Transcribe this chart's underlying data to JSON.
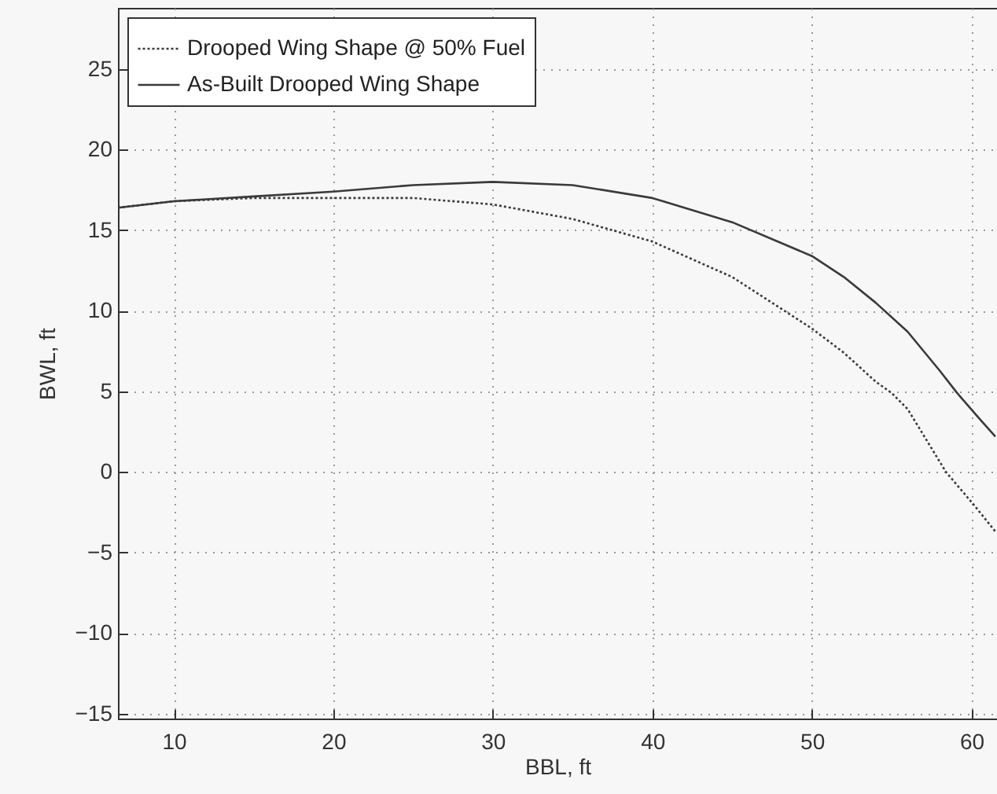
{
  "chart_data": {
    "type": "line",
    "xlabel": "BBL, ft",
    "ylabel": "BWL, ft",
    "xlim": [
      6.5,
      61.6
    ],
    "ylim": [
      -15.3,
      28.8
    ],
    "xticks": [
      10,
      20,
      30,
      40,
      50,
      60
    ],
    "yticks": [
      -15,
      -10,
      -5,
      0,
      5,
      10,
      15,
      20,
      25
    ],
    "grid": true,
    "legend": "top left",
    "series": [
      {
        "name": "Drooped Wing Shape @ 50% Fuel",
        "color": "#3a3a3a",
        "line_style": "dotted",
        "x": [
          6.5,
          10,
          15,
          20,
          25,
          30,
          35,
          40,
          45,
          50,
          52,
          54,
          55,
          56,
          58.4,
          60.2,
          61.5
        ],
        "values": [
          16.4,
          16.8,
          17.0,
          17.0,
          17.0,
          16.6,
          15.7,
          14.3,
          12.1,
          8.9,
          7.4,
          5.6,
          4.9,
          3.9,
          0.0,
          -2.1,
          -3.7
        ]
      },
      {
        "name": "As-Built Drooped Wing Shape",
        "color": "#3a3a3a",
        "line_style": "solid",
        "x": [
          6.5,
          10,
          15,
          20,
          25,
          30,
          35,
          40,
          45,
          50,
          52,
          54,
          56,
          58,
          59.1,
          60.5,
          61.5
        ],
        "values": [
          16.4,
          16.8,
          17.1,
          17.4,
          17.8,
          18.0,
          17.8,
          17.0,
          15.5,
          13.4,
          12.1,
          10.5,
          8.7,
          6.3,
          4.9,
          3.3,
          2.2
        ]
      }
    ]
  }
}
